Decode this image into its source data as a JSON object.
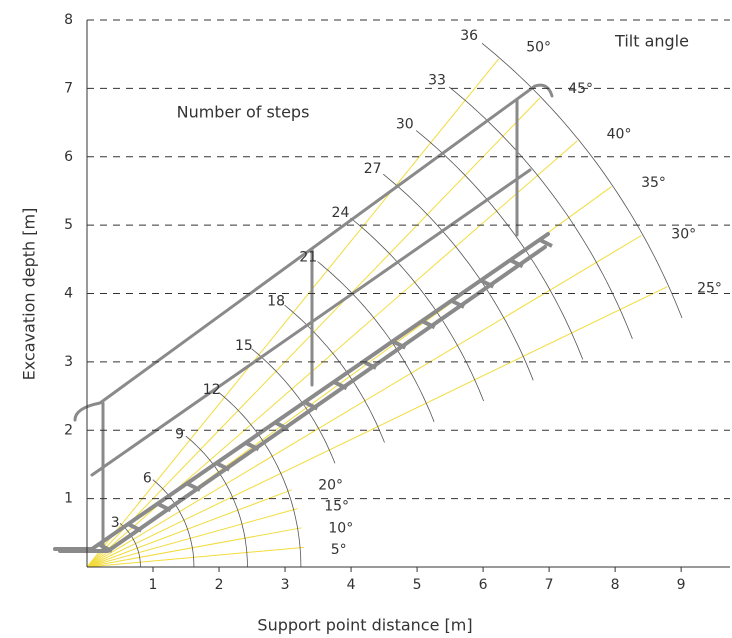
{
  "chart_data": {
    "type": "fan",
    "x_label": "Support point distance [m]",
    "y_label": "Excavation depth [m]",
    "steps_title": "Number of steps",
    "angles_title": "Tilt angle",
    "xlim": [
      0,
      9.74
    ],
    "ylim": [
      0,
      8
    ],
    "xticks": [
      1,
      2,
      3,
      4,
      5,
      6,
      7,
      8,
      9
    ],
    "yticks": [
      1,
      2,
      3,
      4,
      5,
      6,
      7,
      8
    ],
    "grid": true,
    "angles": [
      {
        "value": 5,
        "label": "5°"
      },
      {
        "value": 10,
        "label": "10°"
      },
      {
        "value": 15,
        "label": "15°"
      },
      {
        "value": 20,
        "label": "20°"
      },
      {
        "value": 25,
        "label": "25°"
      },
      {
        "value": 30,
        "label": "30°"
      },
      {
        "value": 35,
        "label": "35°"
      },
      {
        "value": 40,
        "label": "40°"
      },
      {
        "value": 45,
        "label": "45°"
      },
      {
        "value": 50,
        "label": "50°"
      }
    ],
    "angle_ray_lengths": [
      3.3,
      3.3,
      3.3,
      3.3,
      9.7,
      9.7,
      9.7,
      9.7,
      9.7,
      9.7
    ],
    "angle_color": "#f2dc3c",
    "steps": [
      3,
      6,
      9,
      12,
      15,
      18,
      21,
      24,
      27,
      30,
      33,
      36
    ],
    "step_radii": [
      0.81,
      1.62,
      2.43,
      3.24,
      4.05,
      4.86,
      5.67,
      6.48,
      7.29,
      8.1,
      8.91,
      9.72
    ],
    "step_color": "#555555"
  }
}
